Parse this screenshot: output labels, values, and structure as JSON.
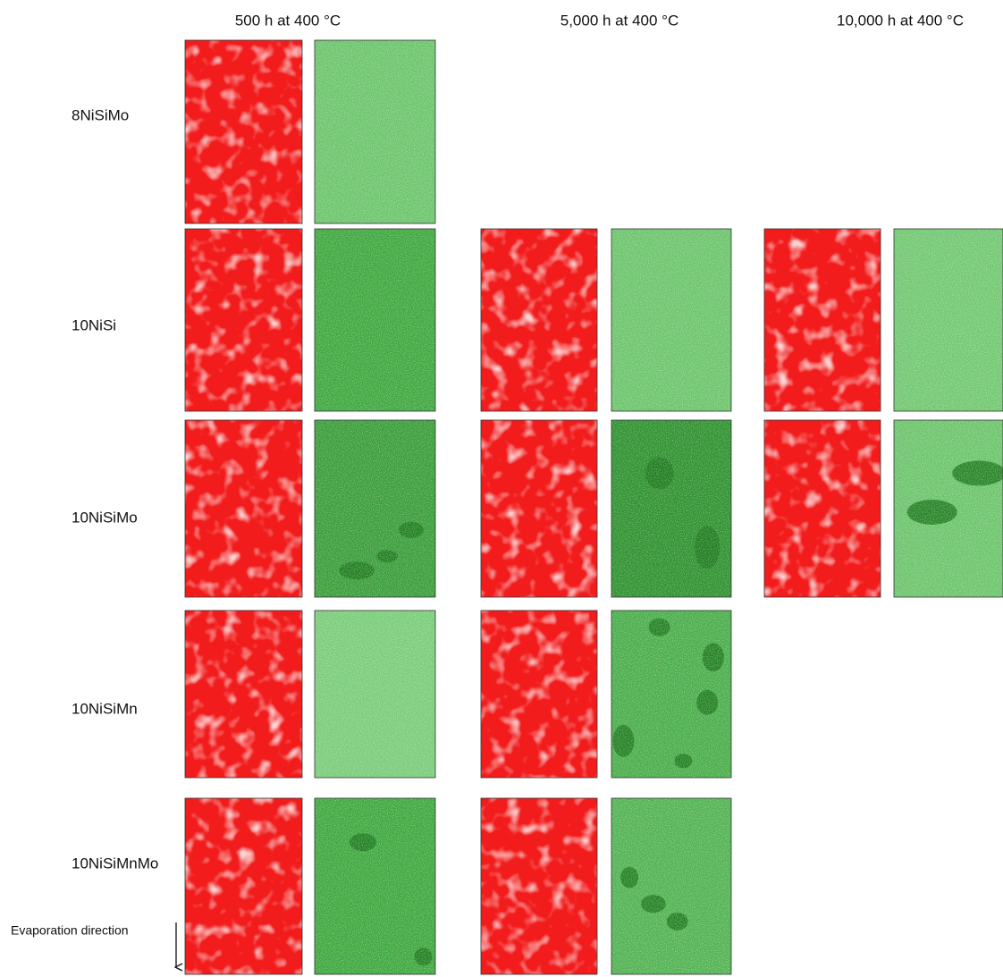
{
  "columns": [
    "500 h at 400 °C",
    "5,000 h at 400 °C",
    "10,000 h at 400 °C"
  ],
  "rows": [
    "8NiSiMo",
    "10NiSi",
    "10NiSiMo",
    "10NiSiMn",
    "10NiSiMnMo"
  ],
  "annotation": "Evaporation direction"
}
